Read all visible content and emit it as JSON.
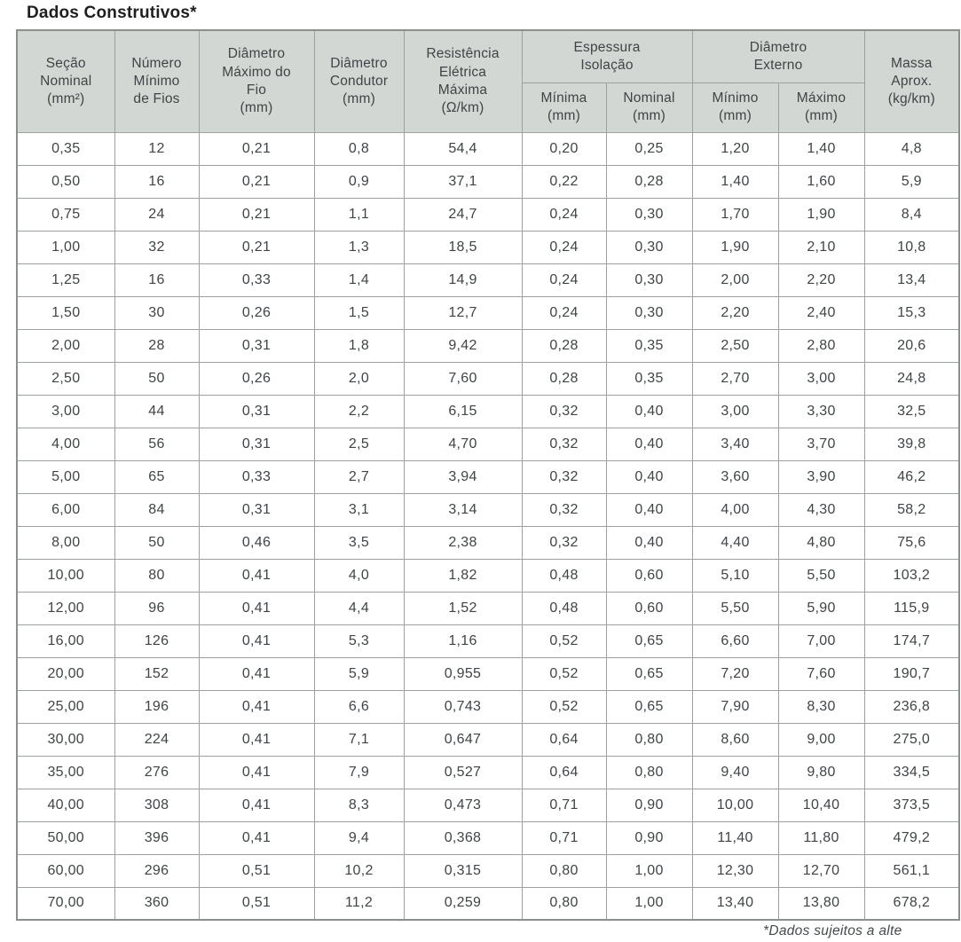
{
  "page": {
    "title": "Dados Construtivos*",
    "footnote": "*Dados sujeitos a alte"
  },
  "colors": {
    "header_bg": "#d3d7d4",
    "grid_border": "#9ca19e",
    "outer_border": "#8a908c",
    "text": "#3f4446",
    "title_text": "#1f1f1f"
  },
  "table": {
    "headers": {
      "secao_nominal": "Seção\nNominal\n(mm²)",
      "numero_fios": "Número\nMínimo\nde Fios",
      "diametro_maximo_fio": "Diâmetro\nMáximo do\nFio\n(mm)",
      "diametro_condutor": "Diâmetro\nCondutor\n(mm)",
      "resistencia_eletrica": "Resistência\nElétrica\nMáxima\n(Ω/km)",
      "espessura_isolacao_grupo": "Espessura\nIsolação",
      "espessura_minima": "Mínima\n(mm)",
      "espessura_nominal": "Nominal\n(mm)",
      "diametro_externo_grupo": "Diâmetro\nExterno",
      "externo_minimo": "Mínimo\n(mm)",
      "externo_maximo": "Máximo\n(mm)",
      "massa_aprox": "Massa\nAprox.\n(kg/km)"
    },
    "rows": [
      [
        "0,35",
        "12",
        "0,21",
        "0,8",
        "54,4",
        "0,20",
        "0,25",
        "1,20",
        "1,40",
        "4,8"
      ],
      [
        "0,50",
        "16",
        "0,21",
        "0,9",
        "37,1",
        "0,22",
        "0,28",
        "1,40",
        "1,60",
        "5,9"
      ],
      [
        "0,75",
        "24",
        "0,21",
        "1,1",
        "24,7",
        "0,24",
        "0,30",
        "1,70",
        "1,90",
        "8,4"
      ],
      [
        "1,00",
        "32",
        "0,21",
        "1,3",
        "18,5",
        "0,24",
        "0,30",
        "1,90",
        "2,10",
        "10,8"
      ],
      [
        "1,25",
        "16",
        "0,33",
        "1,4",
        "14,9",
        "0,24",
        "0,30",
        "2,00",
        "2,20",
        "13,4"
      ],
      [
        "1,50",
        "30",
        "0,26",
        "1,5",
        "12,7",
        "0,24",
        "0,30",
        "2,20",
        "2,40",
        "15,3"
      ],
      [
        "2,00",
        "28",
        "0,31",
        "1,8",
        "9,42",
        "0,28",
        "0,35",
        "2,50",
        "2,80",
        "20,6"
      ],
      [
        "2,50",
        "50",
        "0,26",
        "2,0",
        "7,60",
        "0,28",
        "0,35",
        "2,70",
        "3,00",
        "24,8"
      ],
      [
        "3,00",
        "44",
        "0,31",
        "2,2",
        "6,15",
        "0,32",
        "0,40",
        "3,00",
        "3,30",
        "32,5"
      ],
      [
        "4,00",
        "56",
        "0,31",
        "2,5",
        "4,70",
        "0,32",
        "0,40",
        "3,40",
        "3,70",
        "39,8"
      ],
      [
        "5,00",
        "65",
        "0,33",
        "2,7",
        "3,94",
        "0,32",
        "0,40",
        "3,60",
        "3,90",
        "46,2"
      ],
      [
        "6,00",
        "84",
        "0,31",
        "3,1",
        "3,14",
        "0,32",
        "0,40",
        "4,00",
        "4,30",
        "58,2"
      ],
      [
        "8,00",
        "50",
        "0,46",
        "3,5",
        "2,38",
        "0,32",
        "0,40",
        "4,40",
        "4,80",
        "75,6"
      ],
      [
        "10,00",
        "80",
        "0,41",
        "4,0",
        "1,82",
        "0,48",
        "0,60",
        "5,10",
        "5,50",
        "103,2"
      ],
      [
        "12,00",
        "96",
        "0,41",
        "4,4",
        "1,52",
        "0,48",
        "0,60",
        "5,50",
        "5,90",
        "115,9"
      ],
      [
        "16,00",
        "126",
        "0,41",
        "5,3",
        "1,16",
        "0,52",
        "0,65",
        "6,60",
        "7,00",
        "174,7"
      ],
      [
        "20,00",
        "152",
        "0,41",
        "5,9",
        "0,955",
        "0,52",
        "0,65",
        "7,20",
        "7,60",
        "190,7"
      ],
      [
        "25,00",
        "196",
        "0,41",
        "6,6",
        "0,743",
        "0,52",
        "0,65",
        "7,90",
        "8,30",
        "236,8"
      ],
      [
        "30,00",
        "224",
        "0,41",
        "7,1",
        "0,647",
        "0,64",
        "0,80",
        "8,60",
        "9,00",
        "275,0"
      ],
      [
        "35,00",
        "276",
        "0,41",
        "7,9",
        "0,527",
        "0,64",
        "0,80",
        "9,40",
        "9,80",
        "334,5"
      ],
      [
        "40,00",
        "308",
        "0,41",
        "8,3",
        "0,473",
        "0,71",
        "0,90",
        "10,00",
        "10,40",
        "373,5"
      ],
      [
        "50,00",
        "396",
        "0,41",
        "9,4",
        "0,368",
        "0,71",
        "0,90",
        "11,40",
        "11,80",
        "479,2"
      ],
      [
        "60,00",
        "296",
        "0,51",
        "10,2",
        "0,315",
        "0,80",
        "1,00",
        "12,30",
        "12,70",
        "561,1"
      ],
      [
        "70,00",
        "360",
        "0,51",
        "11,2",
        "0,259",
        "0,80",
        "1,00",
        "13,40",
        "13,80",
        "678,2"
      ]
    ]
  }
}
